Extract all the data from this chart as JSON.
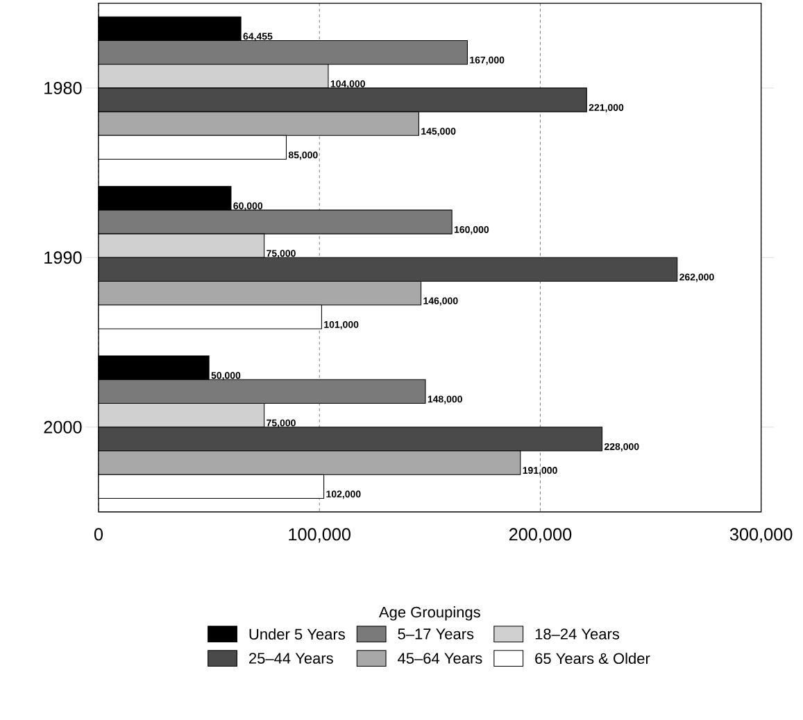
{
  "chart_data": {
    "type": "bar",
    "orientation": "horizontal",
    "categories": [
      "1980",
      "1990",
      "2000"
    ],
    "series": [
      {
        "name": "Under 5 Years",
        "color": "#000000",
        "values": [
          64455,
          60000,
          50000
        ],
        "value_labels": [
          "64,455",
          "60,000",
          "50,000"
        ]
      },
      {
        "name": "5–17 Years",
        "color": "#7a7a7a",
        "values": [
          167000,
          160000,
          148000
        ],
        "value_labels": [
          "167,000",
          "160,000",
          "148,000"
        ]
      },
      {
        "name": "18–24 Years",
        "color": "#d0d0d0",
        "values": [
          104000,
          75000,
          75000
        ],
        "value_labels": [
          "104,000",
          "75,000",
          "75,000"
        ]
      },
      {
        "name": "25–44 Years",
        "color": "#4a4a4a",
        "values": [
          221000,
          262000,
          228000
        ],
        "value_labels": [
          "221,000",
          "262,000",
          "228,000"
        ]
      },
      {
        "name": "45–64 Years",
        "color": "#a8a8a8",
        "values": [
          145000,
          146000,
          191000
        ],
        "value_labels": [
          "145,000",
          "146,000",
          "191,000"
        ]
      },
      {
        "name": "65 Years & Older",
        "color": "#ffffff",
        "values": [
          85000,
          101000,
          102000
        ],
        "value_labels": [
          "85,000",
          "101,000",
          "102,000"
        ]
      }
    ],
    "xlim": [
      0,
      300000
    ],
    "xticks": [
      0,
      {
        "value": 100000,
        "label": "100,000"
      },
      {
        "value": 200000,
        "label": "200,000"
      },
      {
        "value": 300000,
        "label": "300,000"
      }
    ],
    "grid": "x",
    "legend": "bottom",
    "legend_title": "Age Groupings"
  }
}
